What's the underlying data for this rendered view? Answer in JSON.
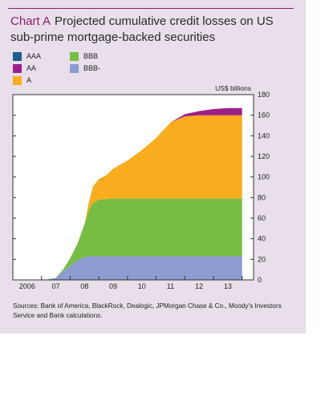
{
  "title": {
    "lead": "Chart A",
    "text": "Projected cumulative credit losses on US sub-prime mortgage-backed securities"
  },
  "legend": [
    {
      "name": "AAA",
      "color": "#1f5f8e"
    },
    {
      "name": "BBB",
      "color": "#78bd43"
    },
    {
      "name": "AA",
      "color": "#9c1f8a"
    },
    {
      "name": "BBB-",
      "color": "#8c9bd0"
    },
    {
      "name": "A",
      "color": "#f8ac1e"
    }
  ],
  "source": "Sources: Bank of America, BlackRock, Dealogic, JPMorgan Chase & Co., Moody's Investors Service and Bank calculations.",
  "chart_data": {
    "type": "area",
    "stacked": true,
    "ylabel": "US$ billions",
    "ylim": [
      0,
      180
    ],
    "yticks": [
      0,
      20,
      40,
      60,
      80,
      100,
      120,
      140,
      160,
      180
    ],
    "xlim": [
      2005.5,
      2013.9
    ],
    "xticks": [
      {
        "label": "2006",
        "pos": 2006.0
      },
      {
        "label": "07",
        "pos": 2007.0
      },
      {
        "label": "08",
        "pos": 2008.0
      },
      {
        "label": "09",
        "pos": 2009.0
      },
      {
        "label": "10",
        "pos": 2010.0
      },
      {
        "label": "11",
        "pos": 2011.0
      },
      {
        "label": "12",
        "pos": 2012.0
      },
      {
        "label": "13",
        "pos": 2013.0
      }
    ],
    "grid": false,
    "x": [
      2006.6,
      2007.0,
      2007.25,
      2007.5,
      2007.75,
      2008.0,
      2008.15,
      2008.3,
      2008.5,
      2008.75,
      2009.0,
      2009.5,
      2010.0,
      2010.5,
      2011.0,
      2011.5,
      2012.0,
      2012.5,
      2013.0,
      2013.5
    ],
    "series": [
      {
        "name": "BBB-",
        "color": "#8c9bd0",
        "values": [
          0,
          2,
          8,
          14,
          19,
          22,
          23,
          23,
          23,
          23,
          23,
          23,
          23,
          23,
          23,
          23,
          23,
          23,
          23,
          23
        ]
      },
      {
        "name": "BBB",
        "color": "#78bd43",
        "values": [
          0,
          0,
          2,
          7,
          16,
          32,
          45,
          52,
          55,
          55.5,
          56,
          56,
          56,
          56,
          56,
          56,
          56,
          56,
          56,
          56
        ]
      },
      {
        "name": "A",
        "color": "#f8ac1e",
        "values": [
          0,
          0,
          0,
          0,
          0,
          0,
          7,
          16,
          20,
          23,
          29,
          37,
          47,
          59,
          74,
          80,
          81,
          81,
          81,
          81
        ]
      },
      {
        "name": "AA",
        "color": "#9c1f8a",
        "values": [
          0,
          0,
          0,
          0,
          0,
          0,
          0,
          0,
          0,
          0,
          0,
          0,
          0,
          0,
          0,
          2,
          4,
          6,
          7,
          7
        ]
      },
      {
        "name": "AAA",
        "color": "#1f5f8e",
        "values": [
          0,
          0,
          0,
          0,
          0,
          0,
          0,
          0,
          0,
          0,
          0,
          0,
          0,
          0,
          0,
          0,
          0,
          0,
          0,
          0
        ]
      }
    ]
  }
}
